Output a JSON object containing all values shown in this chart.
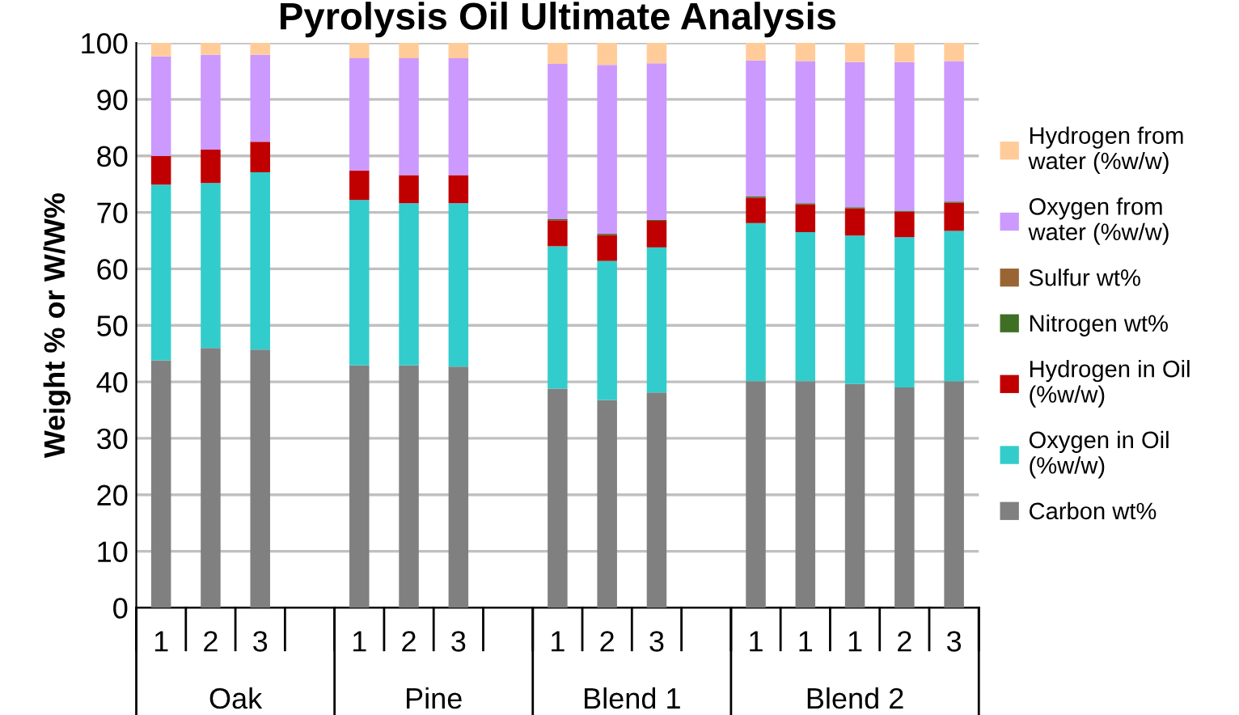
{
  "chart_data": {
    "type": "bar",
    "stacked": true,
    "title": "Pyrolysis Oil Ultimate Analysis",
    "ylabel": "Weight % or W/W%",
    "categories": [
      "1",
      "2",
      "3",
      null,
      "1",
      "2",
      "3",
      null,
      "1",
      "2",
      "3",
      null,
      "1",
      "1",
      "1",
      "2",
      "3"
    ],
    "annotations": [
      "Oak",
      "Pine",
      "Blend 1",
      "Blend 2"
    ],
    "series": [
      {
        "name": "Carbon wt%",
        "color": "#808080",
        "values": [
          43.8,
          46.0,
          45.7,
          null,
          42.9,
          42.9,
          42.7,
          null,
          38.8,
          36.8,
          38.1,
          null,
          40.1,
          40.1,
          39.6,
          39.0,
          40.1
        ]
      },
      {
        "name": "Oxygen in Oil (%w/w)",
        "color": "#33cccc",
        "values": [
          31.1,
          29.2,
          31.4,
          null,
          29.3,
          28.7,
          28.9,
          null,
          25.2,
          24.6,
          25.7,
          null,
          28.0,
          26.4,
          26.3,
          26.6,
          26.6
        ]
      },
      {
        "name": "Hydrogen in Oil (%w/w)",
        "color": "#c00000",
        "values": [
          5.1,
          5.9,
          5.4,
          null,
          5.2,
          5.0,
          5.0,
          null,
          4.6,
          4.6,
          4.7,
          null,
          4.5,
          4.9,
          4.8,
          4.5,
          5.0
        ]
      },
      {
        "name": "Nitrogen wt%",
        "color": "#3f6f24",
        "values": [
          0,
          0,
          0,
          null,
          0,
          0,
          0,
          null,
          0.2,
          0.2,
          0.2,
          null,
          0.2,
          0.2,
          0.2,
          0.2,
          0.2
        ]
      },
      {
        "name": "Sulfur wt%",
        "color": "#996633",
        "values": [
          0,
          0,
          0,
          null,
          0,
          0,
          0,
          null,
          0,
          0,
          0,
          null,
          0,
          0,
          0,
          0,
          0
        ]
      },
      {
        "name": "Oxygen from water (%w/w)",
        "color": "#cc99ff",
        "values": [
          17.6,
          16.8,
          15.4,
          null,
          19.9,
          20.7,
          20.7,
          null,
          27.5,
          29.9,
          27.7,
          null,
          24.1,
          25.2,
          25.7,
          26.3,
          24.9
        ]
      },
      {
        "name": "Hydrogen from water (%w/w)",
        "color": "#ffcc99",
        "values": [
          2.4,
          2.1,
          2.1,
          null,
          2.7,
          2.7,
          2.7,
          null,
          3.7,
          3.9,
          3.6,
          null,
          3.1,
          3.2,
          3.4,
          3.4,
          3.2
        ]
      }
    ],
    "ylim": [
      0,
      100
    ],
    "yticks": [
      0,
      10,
      20,
      30,
      40,
      50,
      60,
      70,
      80,
      90,
      100
    ],
    "grid": "y",
    "legend": "right"
  }
}
